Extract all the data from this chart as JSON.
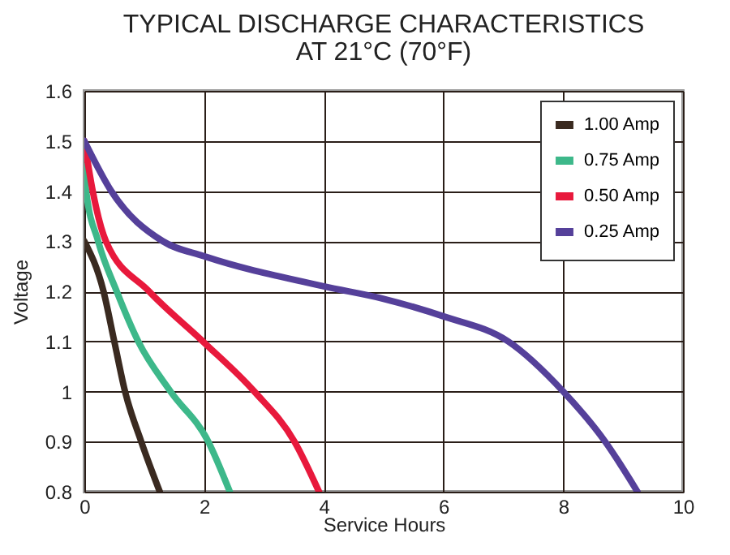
{
  "chart_data": {
    "type": "line",
    "title": "TYPICAL DISCHARGE CHARACTERISTICS",
    "subtitle": "AT 21°C (70°F)",
    "xlabel": "Service Hours",
    "ylabel": "Voltage",
    "xlim": [
      0,
      10
    ],
    "xticks": [
      0,
      2,
      4,
      6,
      8,
      10
    ],
    "ylim": [
      0.8,
      1.6
    ],
    "yticks": [
      0.8,
      0.9,
      1,
      1.1,
      1.2,
      1.3,
      1.4,
      1.5,
      1.6
    ],
    "grid": true,
    "legend": "top right",
    "series": [
      {
        "name": "1.00 Amp",
        "color": "#3a2a20",
        "x": [
          0,
          0.32,
          0.5,
          0.68,
          0.95,
          1.26
        ],
        "values": [
          1.3,
          1.2,
          1.1,
          1.0,
          0.9,
          0.8
        ]
      },
      {
        "name": "0.75 Amp",
        "color": "#3db88a",
        "x": [
          0,
          0.03,
          0.23,
          0.54,
          0.9,
          1.44,
          2.07,
          2.43
        ],
        "values": [
          1.45,
          1.4,
          1.3,
          1.2,
          1.1,
          1.0,
          0.9,
          0.8
        ]
      },
      {
        "name": "0.50 Amp",
        "color": "#e8193c",
        "x": [
          0,
          0.14,
          0.36,
          1.08,
          1.98,
          2.84,
          3.51,
          3.92
        ],
        "values": [
          1.5,
          1.4,
          1.3,
          1.2,
          1.1,
          1.0,
          0.9,
          0.8
        ]
      },
      {
        "name": "0.25 Amp",
        "color": "#55409a",
        "x": [
          0,
          0.45,
          1.31,
          2,
          4,
          5,
          6,
          7.08,
          8,
          8.7,
          9.24
        ],
        "values": [
          1.5,
          1.4,
          1.3,
          1.27,
          1.21,
          1.185,
          1.15,
          1.1,
          1.0,
          0.9,
          0.8
        ]
      }
    ]
  }
}
